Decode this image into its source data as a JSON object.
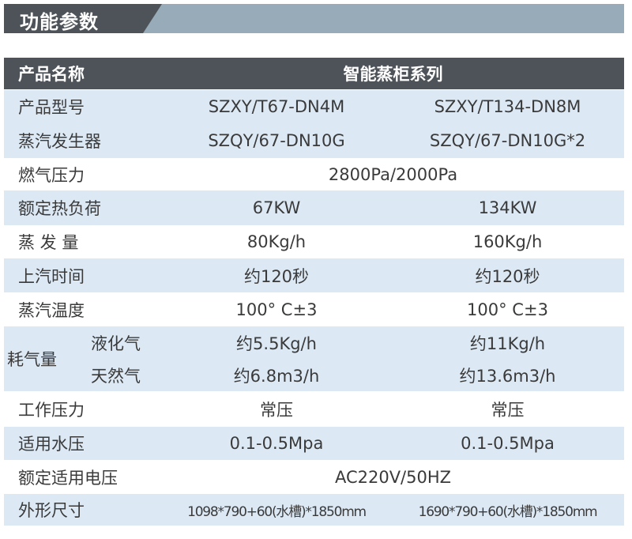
{
  "section_title": "功能参数",
  "table": {
    "header": {
      "label": "产品名称",
      "value": "智能蒸柜系列"
    },
    "rows": [
      {
        "label": "产品型号",
        "values": [
          "SZXY/T67-DN4M",
          "SZXY/T134-DN8M"
        ]
      },
      {
        "label": "蒸汽发生器",
        "values": [
          "SZQY/67-DN10G",
          "SZQY/67-DN10G*2"
        ]
      },
      {
        "label": "燃气压力",
        "span": "2800Pa/2000Pa"
      },
      {
        "label": "额定热负荷",
        "values": [
          "67KW",
          "134KW"
        ]
      },
      {
        "label": "蒸 发 量",
        "values": [
          "80Kg/h",
          "160Kg/h"
        ]
      },
      {
        "label": "上汽时间",
        "values": [
          "约120秒",
          "约120秒"
        ]
      },
      {
        "label": "蒸汽温度",
        "values": [
          "100° C±3",
          "100° C±3"
        ]
      },
      {
        "label": "耗气量",
        "sub": [
          {
            "label": "液化气",
            "values": [
              "约5.5Kg/h",
              "约11Kg/h"
            ]
          },
          {
            "label": "天然气",
            "values": [
              "约6.8m3/h",
              "约13.6m3/h"
            ]
          }
        ]
      },
      {
        "label": "工作压力",
        "values": [
          "常压",
          "常压"
        ]
      },
      {
        "label": "适用水压",
        "values": [
          "0.1-0.5Mpa",
          "0.1-0.5Mpa"
        ]
      },
      {
        "label": "额定适用电压",
        "span": "AC220V/50HZ"
      },
      {
        "label": "外形尺寸",
        "values": [
          "1098*790+60(水槽)*1850mm",
          "1690*790+60(水槽)*1850mm"
        ]
      }
    ]
  },
  "colors": {
    "header_bg": "#4d5358",
    "title_bar": "#97abb8",
    "row_stripe": "#dce9f5"
  }
}
